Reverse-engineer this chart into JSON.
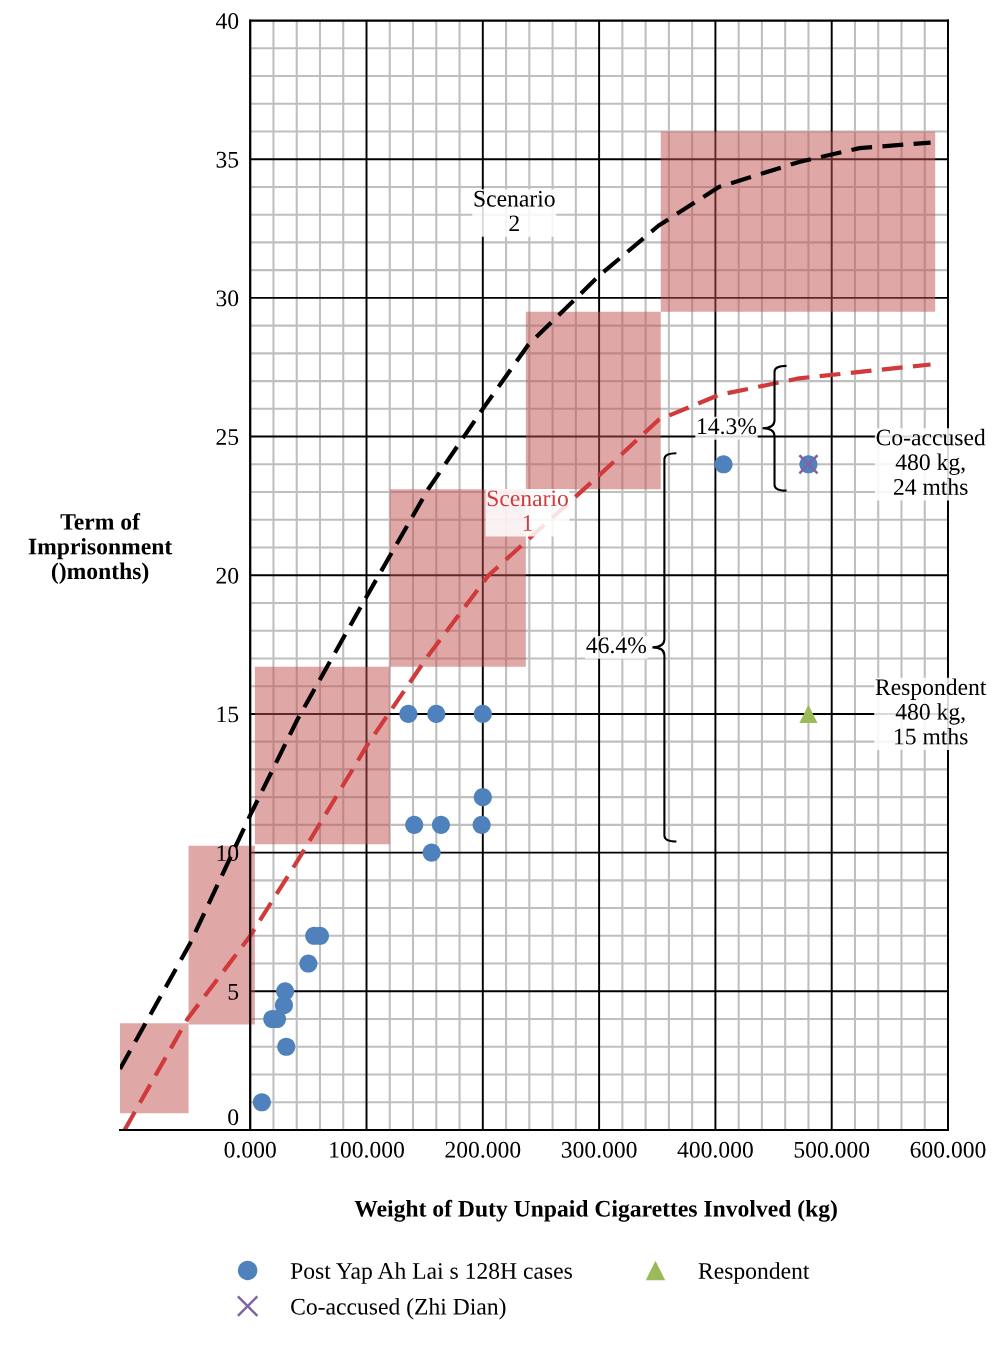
{
  "chart_data": {
    "type": "scatter",
    "xlabel": "Weight of Duty Unpaid Cigarettes Involved (kg)",
    "ylabel": "Term of\nImprisonment\n()months)",
    "xlim": [
      -112,
      600
    ],
    "ylim": [
      0,
      40
    ],
    "xticks": [
      {
        "value": 0,
        "label": "0.000"
      },
      {
        "value": 100,
        "label": "100.000"
      },
      {
        "value": 200,
        "label": "200.000"
      },
      {
        "value": 300,
        "label": "300.000"
      },
      {
        "value": 400,
        "label": "400.000"
      },
      {
        "value": 500,
        "label": "500.000"
      },
      {
        "value": 600,
        "label": "600.000"
      }
    ],
    "yticks": [
      0,
      5,
      10,
      15,
      20,
      25,
      30,
      35,
      40
    ],
    "grid": true,
    "legend": "bottom",
    "series": [
      {
        "type": "bar",
        "color": "#c0504d",
        "x": [
          -82.5,
          -24.5,
          62,
          178.5,
          295,
          471
        ],
        "base": [
          0.6,
          3.8,
          10.3,
          16.7,
          23.1,
          29.5
        ],
        "values": [
          3.25,
          6.45,
          6.4,
          6.4,
          6.4,
          6.5
        ]
      },
      {
        "type": "line",
        "name": "Scenario 2",
        "color": "#000000",
        "line_style": "dashed",
        "marker": "none",
        "x": [
          -112,
          -52,
          0,
          40.6,
          101,
          153,
          200,
          239,
          300,
          351,
          403,
          472,
          524,
          585
        ],
        "values": [
          2.2,
          6.7,
          11.35,
          14.8,
          19.3,
          23.1,
          26,
          28.3,
          30.8,
          32.6,
          34.0,
          34.9,
          35.4,
          35.6
        ]
      },
      {
        "type": "line",
        "name": "Scenario 1",
        "color": "#d13a3a",
        "line_style": "dashed",
        "marker": "none",
        "x": [
          -108,
          -54,
          0,
          40.6,
          101,
          153,
          205,
          300,
          351,
          403,
          472,
          585
        ],
        "values": [
          0,
          4.0,
          7.0,
          9.7,
          13.9,
          17.1,
          20.0,
          23.6,
          25.6,
          26.5,
          27.1,
          27.6
        ]
      },
      {
        "name": "Post Yap Ah Lai s 128H cases",
        "color": "#4f81bd",
        "marker": "circle",
        "x": [
          10,
          31,
          19,
          23,
          29,
          30,
          50,
          55,
          60,
          136,
          160,
          200,
          200,
          141,
          164,
          199,
          156,
          407,
          480
        ],
        "values": [
          1,
          3,
          4,
          4,
          4.5,
          5,
          6,
          7,
          7,
          15,
          15,
          15,
          12,
          11,
          11,
          11,
          10,
          24,
          24
        ]
      },
      {
        "name": "Co-accused (Zhi Dian)",
        "color": "#8064a2",
        "marker": "cross",
        "x": [
          480
        ],
        "values": [
          24
        ]
      },
      {
        "name": "Respondent",
        "color": "#9bbb59",
        "marker": "triangle",
        "x": [
          480
        ],
        "values": [
          15
        ]
      }
    ],
    "annotations": [
      "14.3%",
      "46.4%",
      {
        "text": "Co-accused\n480 kg,\n24 mths",
        "x": 480,
        "y": 24
      },
      {
        "text": "Respondent\n480 kg,\n15 mths",
        "x": 480,
        "y": 15
      }
    ]
  }
}
